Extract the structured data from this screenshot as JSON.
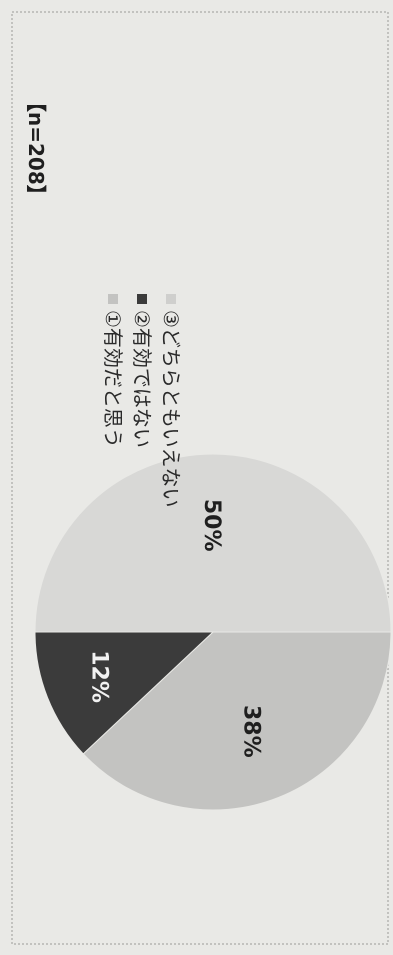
{
  "chart_data": {
    "type": "pie",
    "categories": [
      "①有効だと思う",
      "②有効ではない",
      "③どちらともいえない"
    ],
    "values": [
      38,
      12,
      50
    ],
    "labels": [
      "38%",
      "12%",
      "50%"
    ],
    "colors": [
      "#c3c3c1",
      "#3b3b3b",
      "#d8d8d6"
    ],
    "label_colors": [
      "#1f1f1f",
      "#f2f2f2",
      "#1f1f1f"
    ],
    "legend_placement": "top",
    "title": "",
    "note": "【n=208】"
  }
}
